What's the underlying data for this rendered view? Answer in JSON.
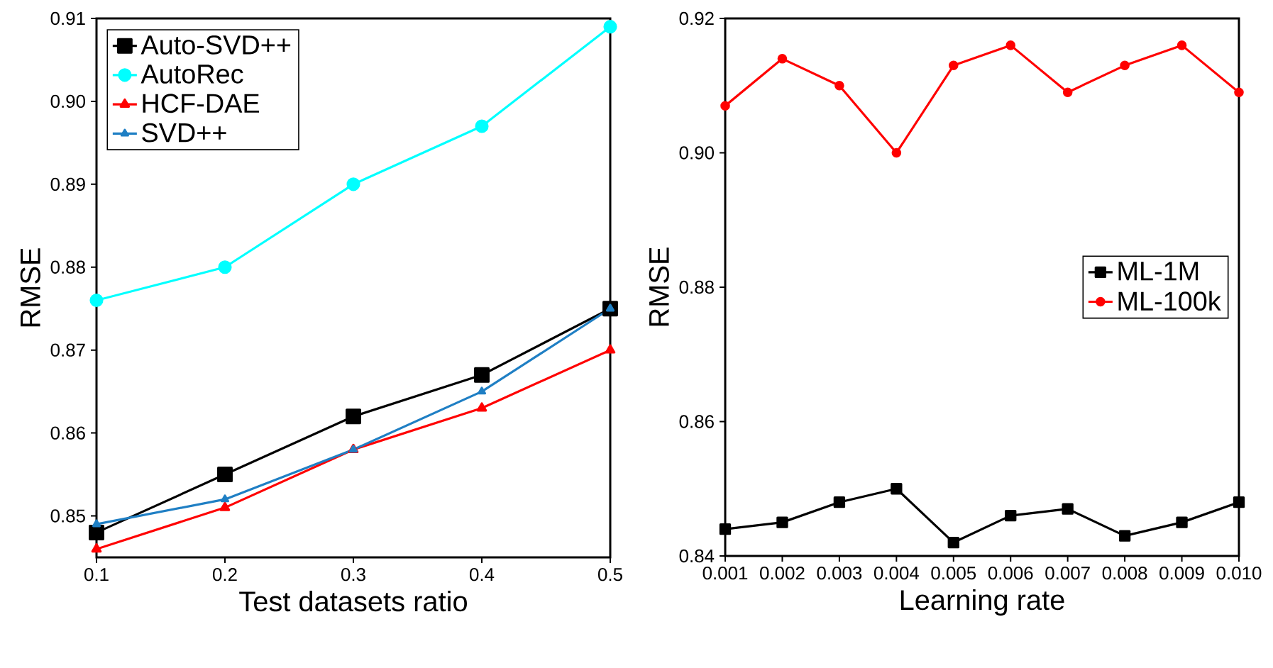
{
  "chart_data": [
    {
      "type": "line",
      "xlabel": "Test datasets ratio",
      "ylabel": "RMSE",
      "x": [
        0.1,
        0.2,
        0.3,
        0.4,
        0.5
      ],
      "xlim": [
        0.1,
        0.5
      ],
      "xticks": [
        0.1,
        0.2,
        0.3,
        0.4,
        0.5
      ],
      "ylim": [
        0.845,
        0.91
      ],
      "yticks": [
        0.85,
        0.86,
        0.87,
        0.88,
        0.89,
        {
          "value": 0.9,
          "label": "0.90"
        },
        0.91
      ],
      "legend": "top left",
      "grid": false,
      "line_style": "solid",
      "series": [
        {
          "name": "Auto-SVD++",
          "color": "#000000",
          "marker": "square",
          "values": [
            0.848,
            0.855,
            0.862,
            0.867,
            0.875
          ]
        },
        {
          "name": "AutoRec",
          "color": "#00ffff",
          "marker": "circle",
          "values": [
            0.876,
            0.88,
            0.89,
            0.897,
            0.909
          ]
        },
        {
          "name": "HCF-DAE",
          "color": "#ff0000",
          "marker": "triangle",
          "values": [
            0.846,
            0.851,
            0.858,
            0.863,
            0.87
          ]
        },
        {
          "name": "SVD++",
          "color": "#1f7fc4",
          "marker": "triangle",
          "values": [
            0.849,
            0.852,
            0.858,
            0.865,
            0.875
          ]
        }
      ]
    },
    {
      "type": "line",
      "xlabel": "Learning rate",
      "ylabel": "RMSE",
      "x": [
        0.001,
        0.002,
        0.003,
        0.004,
        0.005,
        0.006,
        0.007,
        0.008,
        0.009,
        0.01
      ],
      "xlim": [
        0.001,
        0.01
      ],
      "xticks": [
        0.001,
        0.002,
        0.003,
        0.004,
        0.005,
        0.006,
        0.007,
        0.008,
        0.009,
        {
          "value": 0.01,
          "label": "0.010"
        }
      ],
      "ylim": [
        0.84,
        0.92
      ],
      "yticks": [
        0.84,
        0.86,
        0.88,
        {
          "value": 0.9,
          "label": "0.90"
        },
        0.92
      ],
      "legend": "right",
      "grid": false,
      "line_style": "solid",
      "series": [
        {
          "name": "ML-1M",
          "color": "#000000",
          "marker": "square",
          "values": [
            0.844,
            0.845,
            0.848,
            0.85,
            0.842,
            0.846,
            0.847,
            0.843,
            0.845,
            0.848
          ]
        },
        {
          "name": "ML-100k",
          "color": "#ff0000",
          "marker": "circle",
          "values": [
            0.907,
            0.914,
            0.91,
            0.9,
            0.913,
            0.916,
            0.909,
            0.913,
            0.916,
            0.909
          ]
        }
      ]
    }
  ]
}
